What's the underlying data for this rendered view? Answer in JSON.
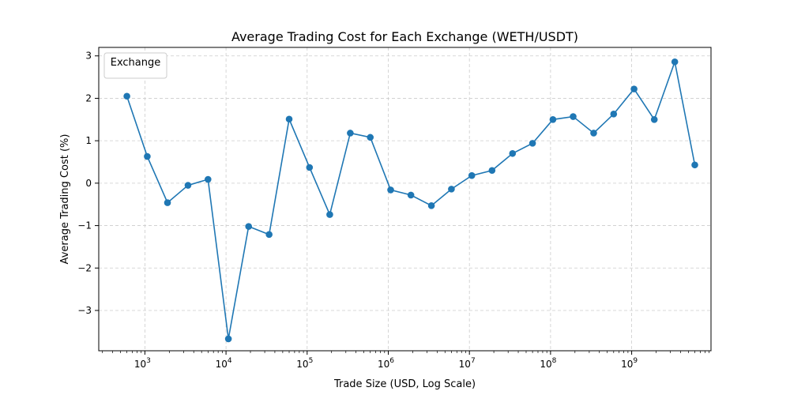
{
  "chart_data": {
    "type": "line",
    "title": "Average Trading Cost for Each Exchange (WETH/USDT)",
    "xlabel": "Trade Size (USD, Log Scale)",
    "ylabel": "Average Trading Cost (%)",
    "xscale": "log",
    "xlim": [
      270,
      9500000000
    ],
    "ylim": [
      -3.95,
      3.2
    ],
    "grid": true,
    "legend": {
      "title": "Exchange",
      "placement": "top-left",
      "entries": []
    },
    "colors": {
      "line": "#1f77b4",
      "grid": "#cccccc"
    },
    "x_ticks": [
      {
        "value": 1000,
        "base": "10",
        "exp": "3"
      },
      {
        "value": 10000,
        "base": "10",
        "exp": "4"
      },
      {
        "value": 100000,
        "base": "10",
        "exp": "5"
      },
      {
        "value": 1000000,
        "base": "10",
        "exp": "6"
      },
      {
        "value": 10000000,
        "base": "10",
        "exp": "7"
      },
      {
        "value": 100000000,
        "base": "10",
        "exp": "8"
      },
      {
        "value": 1000000000,
        "base": "10",
        "exp": "9"
      }
    ],
    "y_ticks": [
      {
        "value": -3,
        "label": "−3"
      },
      {
        "value": -2,
        "label": "−2"
      },
      {
        "value": -1,
        "label": "−1"
      },
      {
        "value": 0,
        "label": "0"
      },
      {
        "value": 1,
        "label": "1"
      },
      {
        "value": 2,
        "label": "2"
      },
      {
        "value": 3,
        "label": "3"
      }
    ],
    "series": [
      {
        "x": [
          600,
          1070,
          1900,
          3400,
          6000,
          10700,
          19000,
          34000,
          60000,
          107000,
          190000,
          340000,
          600000,
          1070000,
          1900000,
          3400000,
          6000000,
          10700000,
          19000000,
          34000000,
          60000000,
          107000000,
          190000000,
          340000000,
          600000000,
          1070000000,
          1900000000,
          3400000000,
          6000000000
        ],
        "y": [
          2.05,
          0.63,
          -0.46,
          -0.05,
          0.09,
          -3.67,
          -1.02,
          -1.21,
          1.51,
          0.37,
          -0.74,
          1.18,
          1.08,
          -0.16,
          -0.28,
          -0.53,
          -0.14,
          0.18,
          0.3,
          0.7,
          0.94,
          1.5,
          1.57,
          1.18,
          1.63,
          2.22,
          1.5,
          2.86,
          0.43
        ]
      }
    ]
  }
}
